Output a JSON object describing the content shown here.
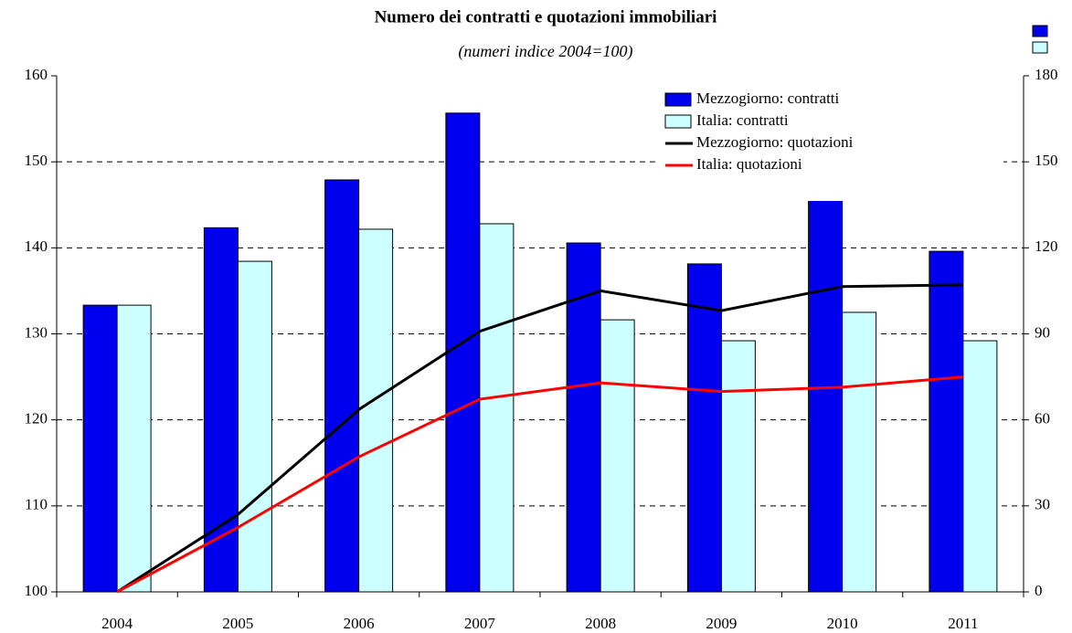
{
  "chart_data": {
    "type": "bar",
    "title": "Numero dei contratti e quotazioni immobiliari",
    "subtitle": "(numeri indice 2004=100)",
    "categories": [
      "2004",
      "2005",
      "2006",
      "2007",
      "2008",
      "2009",
      "2010",
      "2011"
    ],
    "series": [
      {
        "name": "Mezzogiorno: contratti",
        "type": "bar",
        "axis": "y2",
        "color": "#0000ee",
        "values": [
          100,
          127,
          143.7,
          167,
          121.7,
          114.4,
          142,
          118.8
        ]
      },
      {
        "name": "Italia: contratti",
        "type": "bar",
        "axis": "y2",
        "color": "#ccffff",
        "values": [
          100,
          115.3,
          126.5,
          128.4,
          94.9,
          87.6,
          97.5,
          87.6
        ]
      },
      {
        "name": "Mezzogiorno: quotazioni",
        "type": "line",
        "color": "#000000",
        "values": [
          100,
          109.0,
          121.2,
          130.3,
          135.0,
          132.7,
          135.5,
          135.7
        ]
      },
      {
        "name": "Italia: quotazioni",
        "type": "line",
        "color": "#ff0000",
        "values": [
          100,
          107.5,
          115.7,
          122.4,
          124.3,
          123.3,
          123.8,
          125.0
        ]
      }
    ],
    "ylim": [
      100,
      160
    ],
    "yticks": [
      100,
      110,
      120,
      130,
      140,
      150,
      160
    ],
    "y2lim": [
      0,
      180
    ],
    "y2ticks": [
      0,
      30,
      60,
      90,
      120,
      150,
      180
    ],
    "grid": true,
    "legend": "top-right"
  }
}
